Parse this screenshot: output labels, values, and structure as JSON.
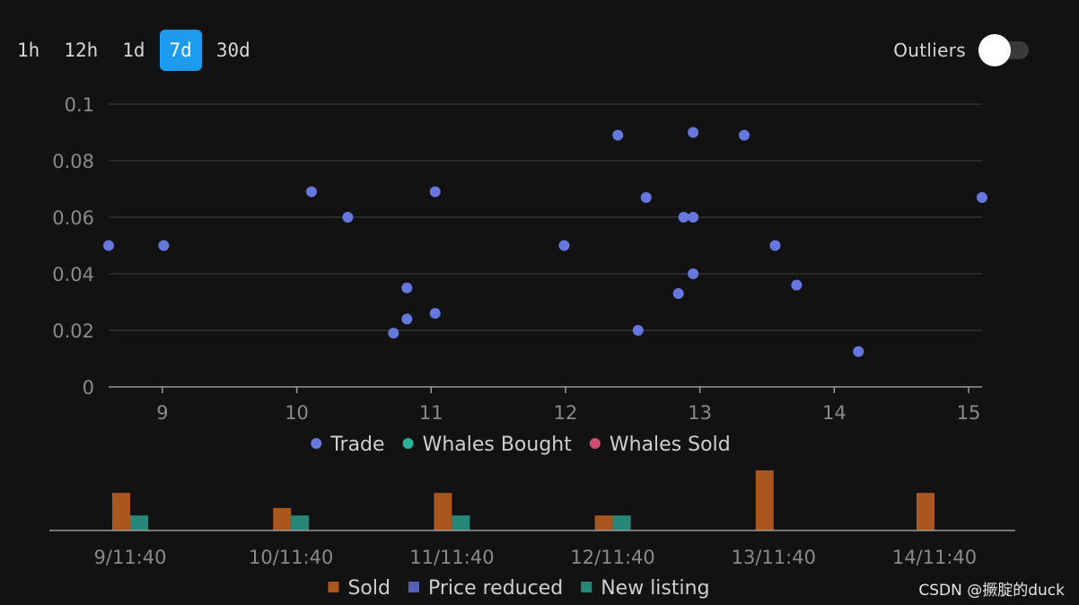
{
  "range_tabs": [
    {
      "label": "1h",
      "active": false
    },
    {
      "label": "12h",
      "active": false
    },
    {
      "label": "1d",
      "active": false
    },
    {
      "label": "7d",
      "active": true
    },
    {
      "label": "30d",
      "active": false
    }
  ],
  "outliers": {
    "label": "Outliers",
    "enabled": false
  },
  "colors": {
    "background": "#121212",
    "accent": "#1d9bf0",
    "grid": "#3a3a3a",
    "axis": "#9a9a9a",
    "tick_text": "#8a8a8a"
  },
  "chart_data": [
    {
      "type": "scatter",
      "title": "",
      "xlabel": "",
      "ylabel": "",
      "xlim": [
        8.6,
        15.1
      ],
      "ylim": [
        0,
        0.1
      ],
      "x_ticks": [
        9,
        10,
        11,
        12,
        13,
        14,
        15
      ],
      "y_ticks": [
        0,
        0.02,
        0.04,
        0.06,
        0.08,
        0.1
      ],
      "y_tick_labels": [
        "0",
        "0.02",
        "0.04",
        "0.06",
        "0.08",
        "0.1"
      ],
      "grid": true,
      "legend_position": "bottom",
      "series": [
        {
          "name": "Trade",
          "color": "#6677dd",
          "points": [
            [
              8.6,
              0.05
            ],
            [
              9.01,
              0.05
            ],
            [
              10.11,
              0.069
            ],
            [
              10.38,
              0.06
            ],
            [
              10.72,
              0.019
            ],
            [
              10.82,
              0.024
            ],
            [
              10.82,
              0.035
            ],
            [
              11.03,
              0.069
            ],
            [
              11.03,
              0.026
            ],
            [
              11.99,
              0.05
            ],
            [
              12.39,
              0.089
            ],
            [
              12.54,
              0.02
            ],
            [
              12.6,
              0.067
            ],
            [
              12.84,
              0.033
            ],
            [
              12.88,
              0.06
            ],
            [
              12.95,
              0.06
            ],
            [
              12.95,
              0.04
            ],
            [
              12.95,
              0.09
            ],
            [
              13.33,
              0.089
            ],
            [
              13.56,
              0.05
            ],
            [
              13.72,
              0.036
            ],
            [
              14.18,
              0.0125
            ],
            [
              15.1,
              0.067
            ]
          ]
        },
        {
          "name": "Whales Bought",
          "color": "#2bb39a",
          "points": []
        },
        {
          "name": "Whales Sold",
          "color": "#d04e6e",
          "points": []
        }
      ]
    },
    {
      "type": "bar",
      "title": "",
      "xlabel": "",
      "ylabel": "",
      "categories": [
        "9/11:40",
        "10/11:40",
        "11/11:40",
        "12/11:40",
        "13/11:40",
        "14/11:40"
      ],
      "ylim": [
        0,
        4
      ],
      "grid": false,
      "legend_position": "bottom",
      "series": [
        {
          "name": "Sold",
          "color": "#a9561f",
          "values": [
            2.5,
            1.5,
            2.5,
            1,
            4,
            2.5
          ]
        },
        {
          "name": "Price reduced",
          "color": "#5560b8",
          "values": [
            0,
            0,
            0,
            0,
            0,
            0
          ]
        },
        {
          "name": "New listing",
          "color": "#27887a",
          "values": [
            1,
            1,
            1,
            1,
            0,
            0
          ]
        }
      ]
    }
  ],
  "watermark": "CSDN @撅腚的duck"
}
